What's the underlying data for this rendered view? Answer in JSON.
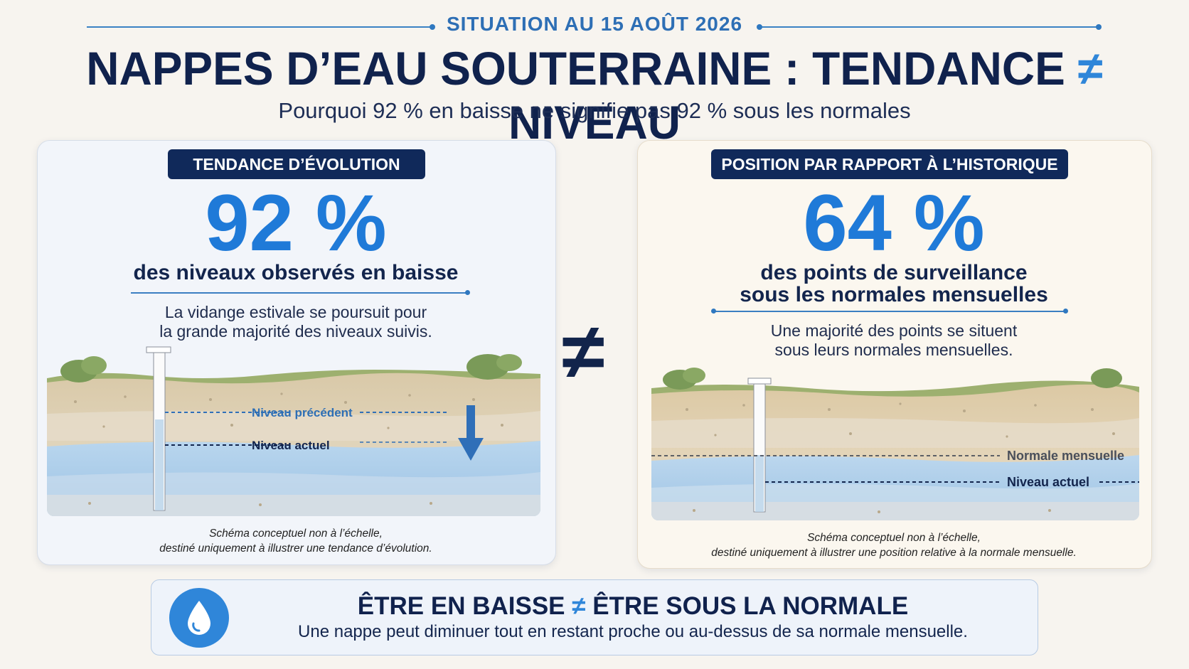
{
  "header": {
    "kicker": "SITUATION AU 15 AOÛT 2026",
    "title_part1": "NAPPES D’EAU SOUTERRAINE : TENDANCE ",
    "title_symbol": "≠",
    "title_part2": " NIVEAU",
    "subtitle": "Pourquoi 92 % en baisse ne signifie pas 92 % sous les normales"
  },
  "left_panel": {
    "badge": "TENDANCE D’ÉVOLUTION",
    "value": "92 %",
    "value_caption": "des niveaux observés en baisse",
    "description_line1": "La vidange estivale se poursuit pour",
    "description_line2": "la grande majorité des niveaux suivis.",
    "label_previous": "Niveau précédent",
    "label_current": "Niveau actuel",
    "note_line1": "Schéma conceptuel non à l’échelle,",
    "note_line2": "destiné uniquement à illustrer une tendance d’évolution."
  },
  "center_symbol": "≠",
  "right_panel": {
    "badge": "POSITION PAR RAPPORT À L’HISTORIQUE",
    "value": "64 %",
    "value_caption_line1": "des points de surveillance",
    "value_caption_line2": "sous les normales mensuelles",
    "description_line1": "Une majorité des points se situent",
    "description_line2": "sous leurs normales mensuelles.",
    "label_normal": "Normale mensuelle",
    "label_current": "Niveau actuel",
    "note_line1": "Schéma conceptuel non à l’échelle,",
    "note_line2": "destiné uniquement à illustrer une position relative à la normale mensuelle."
  },
  "banner": {
    "title_part1": "ÊTRE EN BAISSE ",
    "title_symbol": "≠",
    "title_part2": " ÊTRE SOUS LA NORMALE",
    "text": "Une nappe peut diminuer tout en restant proche ou au-dessus de sa normale mensuelle."
  },
  "colors": {
    "navy": "#10224d",
    "accent_blue": "#1f7ad8",
    "water": "#a9cbe8",
    "background": "#f7f4ef"
  },
  "icons": {
    "banner_icon": "water-drop-icon",
    "left_arrow": "arrow-down-icon"
  }
}
